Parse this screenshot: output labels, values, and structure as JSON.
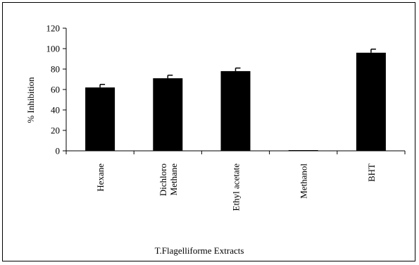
{
  "chart_data": {
    "type": "bar",
    "title": "",
    "xlabel": "T.Flagelliforme Extracts",
    "ylabel": "% Inhibition",
    "categories": [
      [
        "Hexane"
      ],
      [
        "Dichloro",
        "Methane"
      ],
      [
        "Ethyl acetate"
      ],
      [
        "Methanol"
      ],
      [
        "BHT"
      ]
    ],
    "values": [
      62,
      71,
      78,
      0,
      96
    ],
    "errors": [
      3,
      3,
      3,
      0,
      3.5
    ],
    "ylim": [
      0,
      120
    ],
    "yticks": [
      "0",
      "20",
      "40",
      "60",
      "80",
      "100",
      "120"
    ],
    "grid": false,
    "legend": "none",
    "bar_color": "#000000"
  }
}
